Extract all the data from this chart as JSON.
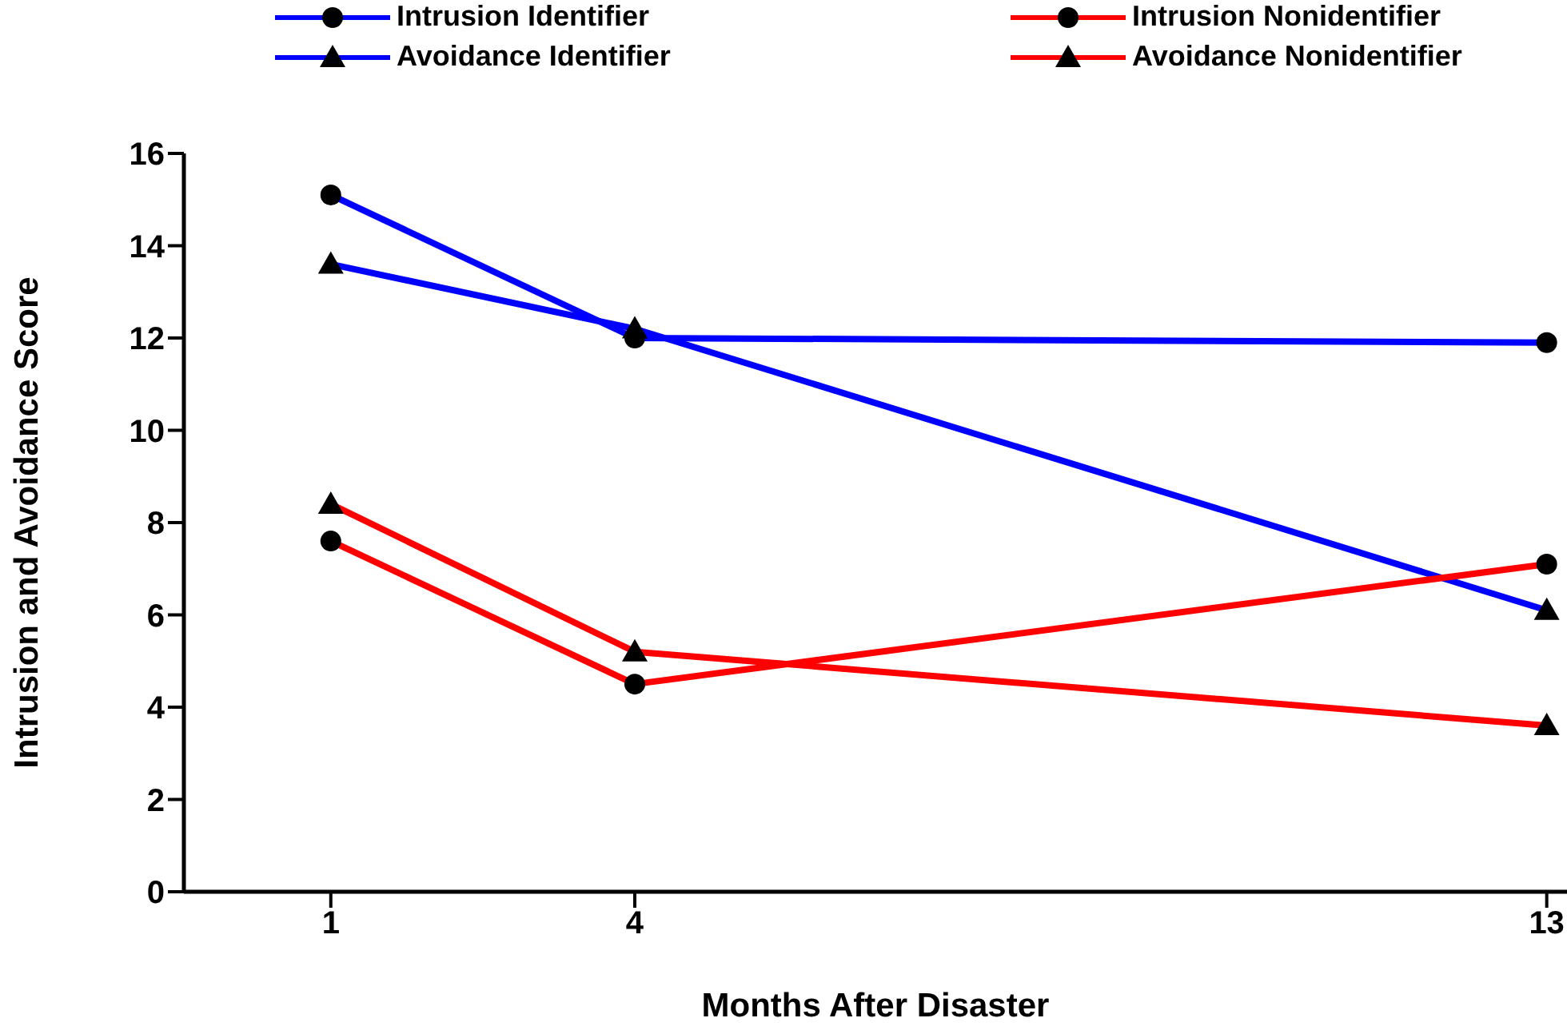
{
  "chart_data": {
    "type": "line",
    "xlabel": "Months After Disaster",
    "ylabel": "Intrusion and Avoidance Score",
    "x": [
      1,
      4,
      13
    ],
    "xlim": [
      -0.45,
      13.2
    ],
    "xticks": [
      1,
      4,
      13
    ],
    "ylim": [
      0,
      16
    ],
    "yticks": [
      0,
      2,
      4,
      6,
      8,
      10,
      12,
      14,
      16
    ],
    "grid": false,
    "legend": "top",
    "line_style": "solid",
    "series": [
      {
        "name": "Intrusion Identifier",
        "color": "#0000ff",
        "marker": "circle",
        "values": [
          15.1,
          12.0,
          11.9
        ]
      },
      {
        "name": "Intrusion Nonidentifier",
        "color": "#ff0000",
        "marker": "circle",
        "values": [
          7.6,
          4.5,
          7.1
        ]
      },
      {
        "name": "Avoidance Identifier",
        "color": "#0000ff",
        "marker": "triangle",
        "values": [
          13.6,
          12.2,
          6.1
        ]
      },
      {
        "name": "Avoidance Nonidentifier",
        "color": "#ff0000",
        "marker": "triangle",
        "values": [
          8.4,
          5.2,
          3.6
        ]
      }
    ]
  }
}
